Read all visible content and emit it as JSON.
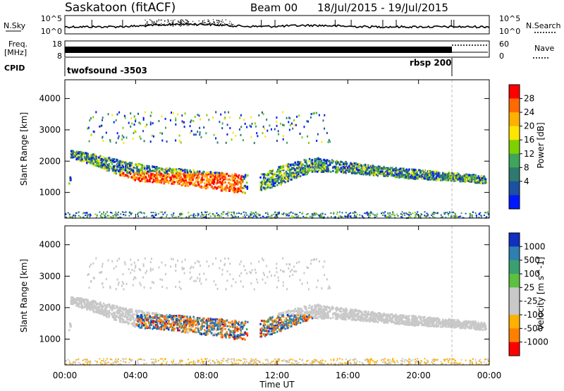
{
  "header": {
    "station": "Saskatoon (fitACF)",
    "beam": "Beam 00",
    "date_range": "18/Jul/2015 - 19/Jul/2015"
  },
  "noise_panel": {
    "left_label": "N.Sky",
    "right_label": "N.Search",
    "left_ticks": [
      "10^5",
      "10^0"
    ],
    "right_ticks": [
      "10^5",
      "10^0"
    ]
  },
  "freq_panel": {
    "left_label_line1": "Freq.",
    "left_label_line2": "[MHz]",
    "left_ticks": [
      "18",
      "8"
    ],
    "right_ticks": [
      "60",
      "0"
    ],
    "right_label": "Nave"
  },
  "cpid_panel": {
    "label": "CPID",
    "segments": [
      {
        "name": "twofsound -3503",
        "start_hour": 0,
        "end_hour": 22
      },
      {
        "name": "rbsp 200",
        "start_hour": 22,
        "end_hour": 24
      }
    ]
  },
  "chart_data": [
    {
      "type": "heatmap",
      "parameter": "Power",
      "ylabel": "Slant Range [km]",
      "ylim": [
        180,
        4600
      ],
      "yticks": [
        1000,
        2000,
        3000,
        4000
      ],
      "colorbar_label": "Power [dB]",
      "colorbar_ticks": [
        "28",
        "24",
        "20",
        "16",
        "12",
        "8",
        "4"
      ],
      "colorbar_colors": [
        "#ff0000",
        "#ff6a00",
        "#ffb000",
        "#ffe600",
        "#7fd000",
        "#3ea55a",
        "#2e7a6e",
        "#1c50a0",
        "#0018ff"
      ],
      "scatter_bands": [
        {
          "desc": "main echo band",
          "points": [
            [
              0.3,
              2400,
              2150
            ],
            [
              2,
              2200,
              1800
            ],
            [
              4,
              1950,
              1400
            ],
            [
              6,
              1800,
              1300
            ],
            [
              8,
              1700,
              1150
            ],
            [
              10,
              1600,
              1000
            ],
            [
              11,
              1600,
              1050
            ],
            [
              12,
              1850,
              1250
            ],
            [
              14,
              2150,
              1700
            ],
            [
              16,
              2000,
              1650
            ],
            [
              18,
              1850,
              1550
            ],
            [
              20,
              1750,
              1450
            ],
            [
              22,
              1650,
              1400
            ],
            [
              24,
              1550,
              1300
            ]
          ]
        },
        {
          "desc": "strong echo region",
          "hours": [
            3,
            10
          ],
          "range_km": [
            800,
            1600
          ],
          "power_db": 28
        }
      ]
    },
    {
      "type": "heatmap",
      "parameter": "Velocity",
      "ylabel": "Slant Range [km]",
      "ylim": [
        180,
        4600
      ],
      "yticks": [
        1000,
        2000,
        3000,
        4000
      ],
      "colorbar_label": "Velocity [m s^-1]",
      "colorbar_ticks": [
        "1000",
        "500",
        "100",
        "25",
        "-25",
        "-100",
        "-500",
        "-1000"
      ],
      "colorbar_colors": [
        "#1030c0",
        "#2f7fb0",
        "#3aa070",
        "#5cc040",
        "#c8c8c8",
        "#c8c8c8",
        "#ffb000",
        "#ff8000",
        "#ff0000"
      ],
      "xticks": [
        "00:00",
        "04:00",
        "08:00",
        "12:00",
        "16:00",
        "20:00",
        "00:00"
      ],
      "xlabel": "Time UT"
    }
  ]
}
